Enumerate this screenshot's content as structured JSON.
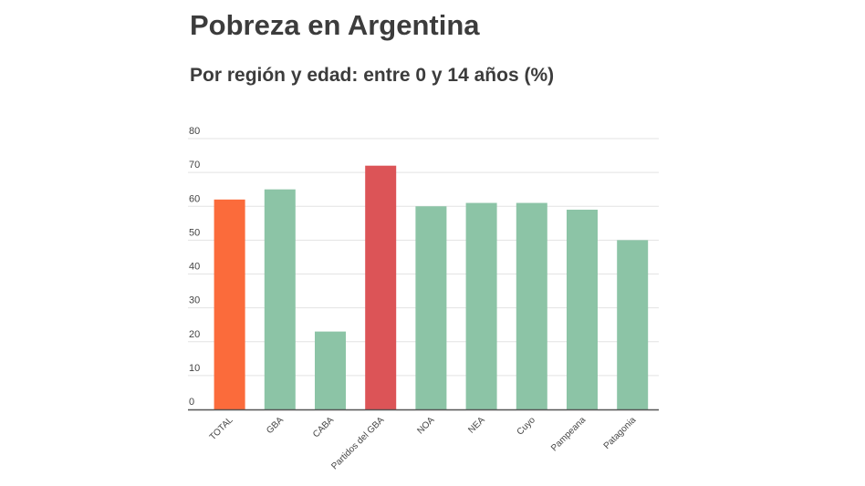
{
  "colors": {
    "total": "#fb6b3b",
    "highlight": "#dc5457",
    "default": "#8cc4a6",
    "grid": "#e3e3e3",
    "axis": "#555555"
  },
  "chart_data": {
    "type": "bar",
    "title": "Pobreza en Argentina",
    "subtitle": "Por región y edad: entre 0 y 14 años (%)",
    "xlabel": "",
    "ylabel": "",
    "ylim": [
      0,
      80
    ],
    "yticks": [
      "0",
      "10",
      "20",
      "30",
      "40",
      "50",
      "60",
      "70",
      "80"
    ],
    "grid": true,
    "categories": [
      "TOTAL",
      "GBA",
      "CABA",
      "Partidos del GBA",
      "NOA",
      "NEA",
      "Cuyo",
      "Pampeana",
      "Patagonia"
    ],
    "values": [
      62,
      65,
      23,
      72,
      60,
      61,
      61,
      59,
      50
    ],
    "bar_colors": [
      "total",
      "default",
      "default",
      "highlight",
      "default",
      "default",
      "default",
      "default",
      "default"
    ]
  }
}
